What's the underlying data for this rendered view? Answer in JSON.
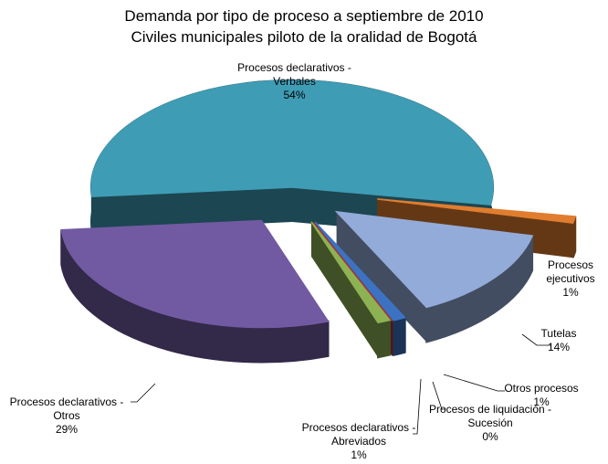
{
  "chart_data": {
    "type": "pie",
    "title": "Demanda por tipo de proceso a septiembre de 2010",
    "subtitle": "Civiles municipales piloto de la oralidad de Bogotá",
    "categories": [
      "Procesos declarativos - Verbales",
      "Procesos ejecutivos",
      "Tutelas",
      "Otros procesos",
      "Procesos de liquidación - Sucesión",
      "Procesos declarativos - Abreviados",
      "Procesos declarativos - Otros"
    ],
    "values": [
      54,
      1,
      14,
      1,
      0,
      1,
      29
    ],
    "value_labels": [
      "54%",
      "1%",
      "14%",
      "1%",
      "0%",
      "1%",
      "29%"
    ],
    "colors": [
      "#3f9cb5",
      "#e07d2f",
      "#93abd8",
      "#3d72c2",
      "#b3312e",
      "#8db254",
      "#715aa2"
    ]
  }
}
